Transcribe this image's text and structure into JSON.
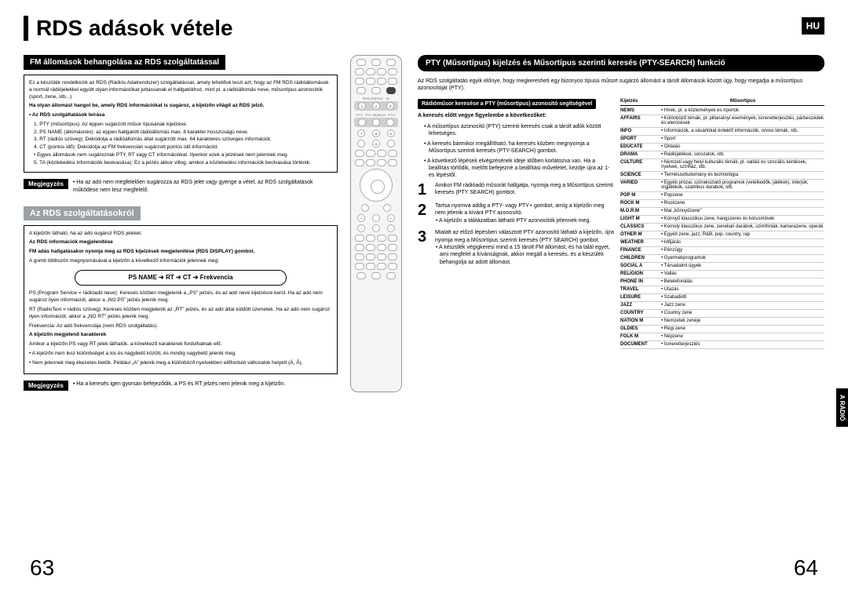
{
  "lang_badge": "HU",
  "side_tab": "A RÁDIÓ",
  "main_title": "RDS adások vétele",
  "page_left": "63",
  "page_right": "64",
  "left": {
    "bar1": "FM állomások behangolása az RDS szolgáltatással",
    "box1_intro": "Ez a készülék rendelkezik az RDS (Rádiós Adatrendszer) szolgáltatással, amely lehetővé teszi azt, hogy az FM RDS rádióállomások a normál rádiójelekkel együtt olyan információkat juttassanak el hallgatókhoz, mint pl. a rádióállomás neve, műsortípus azonosítók (sport, zene, stb...)",
    "box1_bold1": "Ha olyan állomást hangol be, amely RDS információkat is sugároz, a kijelzőn világít az RDS jelző.",
    "box1_sub1": "• Az RDS szolgáltatások leírása",
    "box1_items": [
      "1. PTY (műsortípus): Az éppen sugárzott műsor típusának kijelzése.",
      "2. PS NAME (állomásnév): az éppen hallgatott rádióállomás max. 8 karakter hosszúságú neve.",
      "3. RT (rádiós szöveg): Dekódolja a rádióállomás által sugárzott max. 64 karakteres szöveges információt.",
      "4. CT (pontos idő): Dekódolja az FM frekvencián sugárzott pontos idő információt.",
      "• Egyes állomások nem sugároznak PTY, RT vagy CT információkat. Ilyenkor ezek a jelzések nem jelennek meg.",
      "5. TA (közlekedési információk beolvasása): Ez a jelzés akkor villog, amikor a közlekedési információk beolvasása történik."
    ],
    "note1_label": "Megjegyzés",
    "note1_text": "• Ha az adó nem megfelelően sugározza az RDS jelet vagy gyenge a vétel, az RDS szolgáltatások működése nem lesz megfelelő.",
    "sub_head": "Az RDS szolgáltatásokról",
    "box2_p1": "A kijelzőn látható, ha az adó sugároz RDS jeleket.",
    "box2_b1": "Az RDS információk megjelenítése",
    "box2_p2": "FM adás hallgatásakor nyomja meg az RDS kijelzések megjelenítése (RDS DISPLAY) gombot.",
    "box2_p3": "A gomb többszöri megnyomásával a kijelzőn a következő információk jelennek meg:",
    "flow": "PS NAME ➔ RT ➔ CT ➔ Frekvencia",
    "box2_ps": "PS (Program Service = rádióadó neve): Keresés közben megjelenik a „PS\" jelzés, és az adó neve kijelzésre kerül. Ha az adó nem sugároz ilyen információt, akkor a „NO PS\" jelzés jelenik meg.",
    "box2_rt": "RT (RadioText = rádiós szöveg): Keresés közben megjelenik az „RT\" jelzés, és az adó által küldött üzenetek. Ha az adó nem sugároz ilyen információt, akkor a „NO RT\" jelzés jelenik meg.",
    "box2_freq": "Frekvencia: Az adó frekvenciája (nem RDS szolgáltatás).",
    "box2_b2": "A kijelzőn megjelenő karakterek",
    "box2_p4": "Amikor a kijelzőn PS vagy RT jelek láthatók, a következő karakterek fordulhatnak elő.",
    "box2_li1": "• A kijelzőn nem lesz különbséget a kis és nagybetű között, és mindig nagybetű jelenik meg.",
    "box2_li2": "• Nem jelennek meg ékezetes betűk. Például „A\" jelenik meg a különböző nyelvekben előforduló változatok helyett (À, Â).",
    "note2_label": "Megjegyzés",
    "note2_text": "• Ha a keresés igen gyorsan befejeződik, a PS és RT jelzés nem jelenik meg a kijelzőn."
  },
  "right": {
    "pty_banner": "PTY (Műsortípus) kijelzés és Műsortípus szerinti keresés (PTY-SEARCH) funkció",
    "intro": "Az RDS szolgáltatás egyik előnye, hogy megkeresheti egy bizonyos típusú műsort sugárzó állomást a tárolt állomások között úgy, hogy megadja a műsortípus azonosítóját (PTY).",
    "subbar": "Rádióműsor keresése a PTY (műsortípus) azonosító segítségével",
    "pre_bold": "A keresés előtt vegye figyelembe a következőket:",
    "pre_items": [
      "A műsortípus azonosító (PTY) szerinti keresés csak a tárolt adók között lehetséges.",
      "A keresés bármikor megállítható, ha keresés közben megnyomja a Műsortípus szerinti keresés (PTY-SEARCH) gombot.",
      "A következő lépések elvégzésének ideje időben korlátozva van. Ha a beállítás törlődik, mielőtt befejezné a beállítási műveletet, kezdje újra az 1-es lépéstől."
    ],
    "steps": [
      {
        "num": "1",
        "text": "Amikor FM rádióadó műsorát hallgatja, nyomja meg a Műsortípus szerinti keresés (PTY SEARCH) gombot."
      },
      {
        "num": "2",
        "text": "Tartsa nyomva addig a PTY- vagy PTY+ gombot, amíg a kijelzőn meg nem jelenik a kívánt PTY azonosító.",
        "sub": "• A kijelzőn a táblázatban látható PTY azonosítók jelennek meg."
      },
      {
        "num": "3",
        "text": "Mialatt az előző lépésben választott PTY azonosító látható a kijelzőn, újra nyomja meg a Műsortípus szerinti keresés (PTY SEARCH) gombot.",
        "sub": "• A készülék végigkeresi mind a 15 tárolt FM állomást, és ha talál egyet, ami megfelel a kívánságnak, akkor megáll a keresés, és a készülék behangolja az adott állomást."
      }
    ],
    "table_head": {
      "c1": "Kijelzés",
      "c2": "Műsortípus"
    },
    "table": [
      {
        "c1": "NEWS",
        "c2": "Hírek, pl. a közlemények és riportok"
      },
      {
        "c1": "AFFAIRS",
        "c2": "Különböző témák, pl. pillanatnyi események, ismeretterjesztés, párbeszédek és elemzések"
      },
      {
        "c1": "INFO",
        "c2": "Információk, a vásárlókat érdeklő információk, orvosi témák, stb."
      },
      {
        "c1": "SPORT",
        "c2": "Sport"
      },
      {
        "c1": "EDUCATE",
        "c2": "Oktatás"
      },
      {
        "c1": "DRAMA",
        "c2": "Rádiójátékok, sorozatok, stb."
      },
      {
        "c1": "CULTURE",
        "c2": "Nemzeti vagy helyi kulturális témák, pl. vallási és szociális kérdések, nyelvek, színház, stb."
      },
      {
        "c1": "SCIENCE",
        "c2": "Természettudomány és technológia"
      },
      {
        "c1": "VARIED",
        "c2": "Egyéb prózai, szórakoztató programok (vetélkedők, játékok), interjúk, vígjátékok, szatirikus darabok, stb."
      },
      {
        "c1": "POP M",
        "c2": "Popzene"
      },
      {
        "c1": "ROCK M",
        "c2": "Rockzene"
      },
      {
        "c1": "M.O.R.M",
        "c2": "Mai „könnyűzene\""
      },
      {
        "c1": "LIGHT M",
        "c2": "Könnyű klasszikus zene, hangszeres és kórusművek"
      },
      {
        "c1": "CLASSICS",
        "c2": "Komoly klasszikus zene, zenekari darabok, szimfóniák, kamarazene, operák"
      },
      {
        "c1": "OTHER M",
        "c2": "Egyéb zene, jazz, R&B, pop, country, rap"
      },
      {
        "c1": "WEATHER",
        "c2": "Időjárás"
      },
      {
        "c1": "FINANCE",
        "c2": "Pénzügy"
      },
      {
        "c1": "CHILDREN",
        "c2": "Gyermekprogramok"
      },
      {
        "c1": "SOCIAL A",
        "c2": "Társadalmi ügyek"
      },
      {
        "c1": "RELIGION",
        "c2": "Vallás"
      },
      {
        "c1": "PHONE IN",
        "c2": "Betelefonálás"
      },
      {
        "c1": "TRAVEL",
        "c2": "Utazás"
      },
      {
        "c1": "LEISURE",
        "c2": "Szabadidő"
      },
      {
        "c1": "JAZZ",
        "c2": "Jazz zene"
      },
      {
        "c1": "COUNTRY",
        "c2": "Country zene"
      },
      {
        "c1": "NATION M",
        "c2": "Nemzetek zenéje"
      },
      {
        "c1": "OLDIES",
        "c2": "Régi zene"
      },
      {
        "c1": "FOLK M",
        "c2": "Népzene"
      },
      {
        "c1": "DOCUMENT",
        "c2": "Ismeretterjesztés"
      }
    ]
  }
}
